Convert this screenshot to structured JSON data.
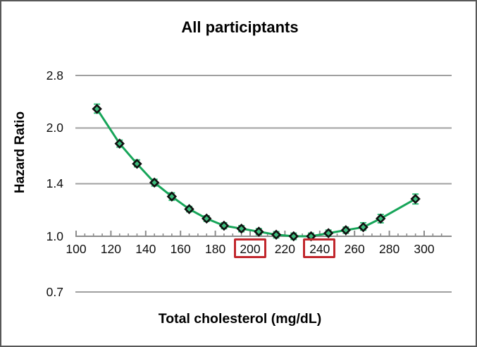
{
  "frame": {
    "background": "#ffffff",
    "border_color": "#585858"
  },
  "chart_data": {
    "type": "line",
    "title": "All participtants",
    "xlabel": "Total cholesterol (mg/dL)",
    "ylabel": "Hazard Ratio",
    "y_scale": "log",
    "ylim": [
      0.7,
      2.8
    ],
    "xlim": [
      100,
      310
    ],
    "grid": "horizontal-only",
    "legend_position": "none",
    "y_tick_labels": [
      "2.8",
      "2.0",
      "1.4",
      "1.0",
      "0.7"
    ],
    "y_tick_values": [
      2.8,
      2.0,
      1.4,
      1.0,
      0.7
    ],
    "y_gridline_values": [
      2.8,
      2.0,
      1.4,
      0.7
    ],
    "x_major_ticks": [
      100,
      120,
      140,
      160,
      180,
      200,
      220,
      240,
      260,
      280,
      300
    ],
    "x_minor_tick_step": 5,
    "x_minor_tick_end": 310,
    "x_highlighted_ticks": [
      200,
      240
    ],
    "series": [
      {
        "name": "All participants",
        "x": [
          112,
          125,
          135,
          145,
          155,
          165,
          175,
          185,
          195,
          205,
          215,
          225,
          235,
          245,
          255,
          265,
          275,
          295
        ],
        "hr": [
          2.26,
          1.81,
          1.59,
          1.41,
          1.29,
          1.19,
          1.12,
          1.07,
          1.05,
          1.03,
          1.01,
          1.0,
          1.0,
          1.02,
          1.04,
          1.06,
          1.12,
          1.27
        ],
        "ci_low": [
          2.2,
          1.77,
          1.56,
          1.38,
          1.26,
          1.17,
          1.1,
          1.05,
          1.03,
          1.01,
          0.99,
          0.98,
          0.98,
          1.0,
          1.02,
          1.04,
          1.09,
          1.23
        ],
        "ci_high": [
          2.33,
          1.85,
          1.63,
          1.44,
          1.32,
          1.21,
          1.14,
          1.09,
          1.07,
          1.05,
          1.03,
          1.02,
          1.02,
          1.04,
          1.06,
          1.09,
          1.15,
          1.31
        ]
      }
    ],
    "colors": {
      "line": "#17A559",
      "error_bar": "#2FBF77",
      "marker_fill": "#3DBD7D",
      "marker_stroke": "#101010",
      "grid": "#A0A0A0",
      "axis": "#8C8C8C",
      "tick_label": "#0f0f0f",
      "highlight_box": "#C1272D",
      "title": "#000000"
    }
  }
}
